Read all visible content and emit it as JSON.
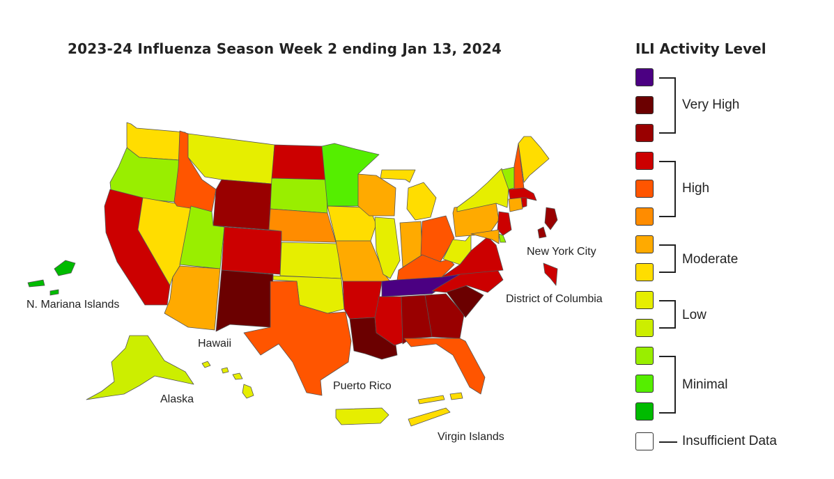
{
  "title": "2023-24 Influenza Season Week 2 ending Jan 13, 2024",
  "legend": {
    "title": "ILI Activity Level",
    "levels": [
      {
        "color": "#4B0082"
      },
      {
        "color": "#6B0000"
      },
      {
        "color": "#990000"
      },
      {
        "color": "#CC0000"
      },
      {
        "color": "#FF5500"
      },
      {
        "color": "#FF8C00"
      },
      {
        "color": "#FFAA00"
      },
      {
        "color": "#FFDD00"
      },
      {
        "color": "#E6EE00"
      },
      {
        "color": "#CCEE00"
      },
      {
        "color": "#99EE00"
      },
      {
        "color": "#55EE00"
      },
      {
        "color": "#00BB00"
      },
      {
        "color": "#FFFFFF"
      }
    ],
    "groups": {
      "very_high": "Very High",
      "high": "High",
      "moderate": "Moderate",
      "low": "Low",
      "minimal": "Minimal",
      "insufficient": "Insufficient Data"
    }
  },
  "labels": {
    "nyc": "New York City",
    "dc": "District of Columbia",
    "nmi": "N. Mariana Islands",
    "hawaii": "Hawaii",
    "alaska": "Alaska",
    "pr": "Puerto Rico",
    "vi": "Virgin Islands"
  },
  "states": {
    "WA": "#FFDD00",
    "OR": "#99EE00",
    "CA": "#CC0000",
    "NV": "#FFDD00",
    "ID": "#FF5500",
    "MT": "#E6EE00",
    "WY": "#990000",
    "UT": "#99EE00",
    "AZ": "#FFAA00",
    "NM": "#6B0000",
    "CO": "#CC0000",
    "ND": "#CC0000",
    "SD": "#99EE00",
    "NE": "#FF8C00",
    "KS": "#E6EE00",
    "OK": "#E6EE00",
    "TX": "#FF5500",
    "MN": "#55EE00",
    "IA": "#FFDD00",
    "MO": "#FFAA00",
    "AR": "#CC0000",
    "LA": "#6B0000",
    "WI": "#FFAA00",
    "IL": "#E6EE00",
    "MI": "#FFDD00",
    "IN": "#FFAA00",
    "OH": "#FF5500",
    "KY": "#FF5500",
    "TN": "#4B0082",
    "MS": "#CC0000",
    "AL": "#990000",
    "GA": "#990000",
    "FL": "#FF5500",
    "SC": "#6B0000",
    "NC": "#CC0000",
    "VA": "#CC0000",
    "WV": "#E6EE00",
    "PA": "#FFAA00",
    "NY": "#E6EE00",
    "VT": "#99EE00",
    "NH": "#FF5500",
    "ME": "#FFDD00",
    "MA": "#CC0000",
    "CT": "#FFAA00",
    "RI": "#CC0000",
    "NJ": "#CC0000",
    "DE": "#99EE00",
    "MD": "#FFAA00",
    "AK": "#CCEE00",
    "HI": "#E6EE00",
    "PR": "#E6EE00",
    "VI": "#FFDD00",
    "NMI": "#00BB00",
    "NYC": "#990000",
    "DC": "#CC0000"
  }
}
